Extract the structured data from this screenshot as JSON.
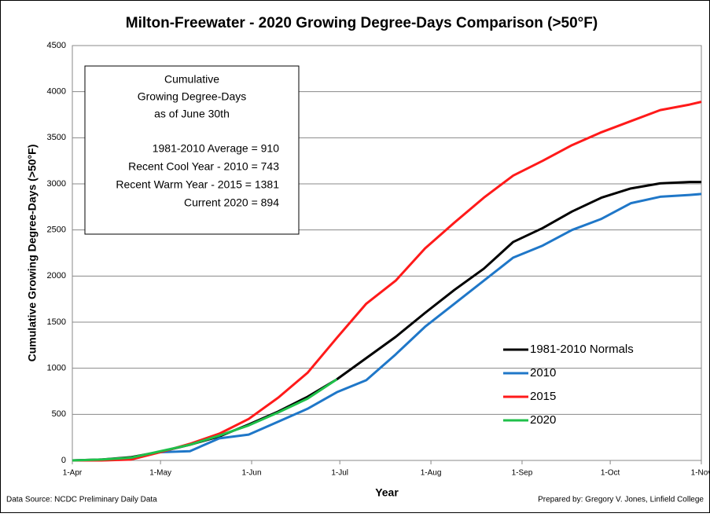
{
  "chart_data": {
    "type": "line",
    "title": "Milton-Freewater - 2020 Growing Degree-Days Comparison (>50°F)",
    "xlabel": "Year",
    "ylabel": "Cumulative Growing Degree-Days (>50°F)",
    "source": "Data Source: NCDC Preliminary Daily Data",
    "credit": "Prepared by: Gregory V. Jones, Linfield College",
    "annotation": [
      "Cumulative",
      "Growing Degree-Days",
      "as of June 30th",
      "1981-2010 Average =  910",
      "Recent Cool Year - 2010 =  743",
      "Recent Warm Year - 2015 = 1381",
      "Current 2020 =  894"
    ],
    "x": [
      0,
      10,
      20,
      30,
      40,
      50,
      60,
      70,
      80,
      90,
      100,
      110,
      120,
      130,
      140,
      150,
      160,
      170,
      180,
      190,
      200,
      210,
      214
    ],
    "series": [
      {
        "name": "1981-2010 Normals",
        "color": "#000000",
        "values": [
          0,
          10,
          35,
          95,
          170,
          260,
          390,
          530,
          690,
          880,
          1110,
          1340,
          1600,
          1850,
          2080,
          2370,
          2520,
          2700,
          2850,
          2950,
          3005,
          3020,
          3020
        ]
      },
      {
        "name": "2010",
        "color": "#1f77c8",
        "values": [
          0,
          5,
          25,
          90,
          100,
          240,
          280,
          420,
          560,
          740,
          870,
          1150,
          1450,
          1700,
          1950,
          2200,
          2330,
          2500,
          2620,
          2790,
          2860,
          2880,
          2890
        ]
      },
      {
        "name": "2015",
        "color": "#ff1a1a",
        "values": [
          0,
          0,
          10,
          90,
          180,
          290,
          450,
          680,
          950,
          1330,
          1700,
          1950,
          2300,
          2580,
          2850,
          3090,
          3250,
          3420,
          3560,
          3680,
          3800,
          3860,
          3890
        ]
      },
      {
        "name": "2020",
        "color": "#1fc04a",
        "values": [
          0,
          10,
          30,
          100,
          170,
          270,
          380,
          520,
          670,
          880,
          null,
          null,
          null,
          null,
          null,
          null,
          null,
          null,
          null,
          null,
          null,
          null,
          null
        ]
      }
    ],
    "xlim": [
      0,
      214
    ],
    "xticks": [
      {
        "value": 0,
        "label": "1-Apr"
      },
      {
        "value": 30,
        "label": "1-May"
      },
      {
        "value": 61,
        "label": "1-Jun"
      },
      {
        "value": 91,
        "label": "1-Jul"
      },
      {
        "value": 122,
        "label": "1-Aug"
      },
      {
        "value": 153,
        "label": "1-Sep"
      },
      {
        "value": 183,
        "label": "1-Oct"
      },
      {
        "value": 214,
        "label": "1-Nov"
      }
    ],
    "ylim": [
      0,
      4500
    ],
    "yticks": [
      0,
      500,
      1000,
      1500,
      2000,
      2500,
      3000,
      3500,
      4000,
      4500
    ],
    "grid": true,
    "legend": "lower right"
  }
}
